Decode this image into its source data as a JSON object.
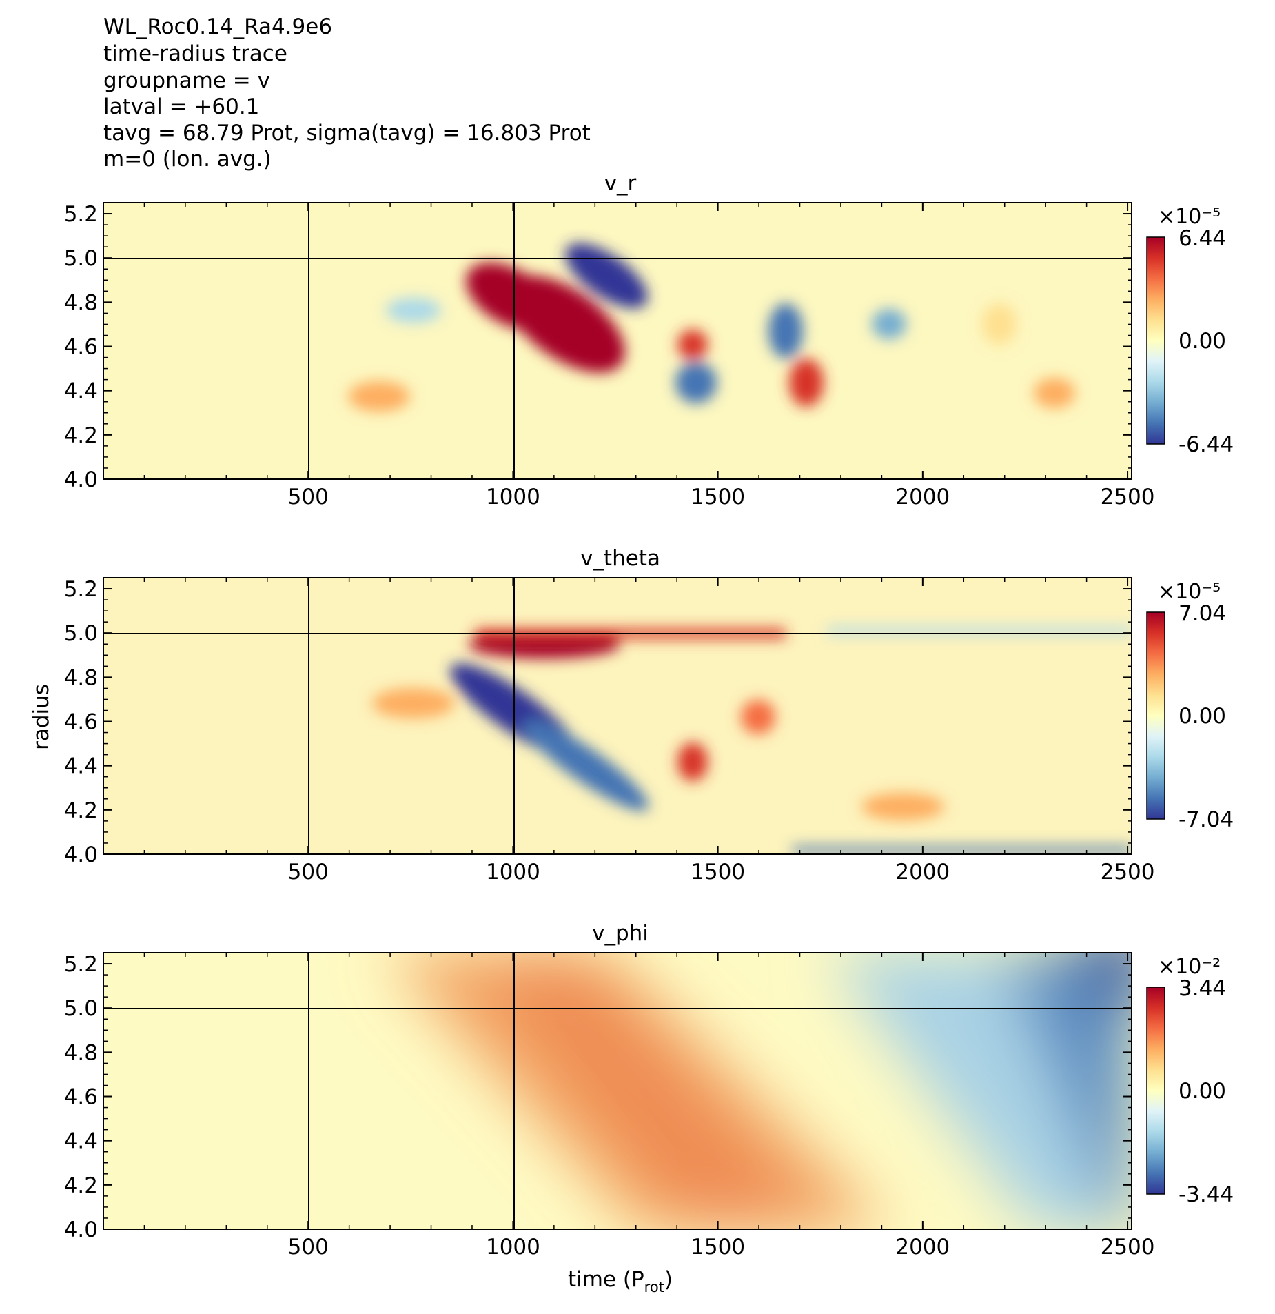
{
  "header": {
    "lines": [
      "WL_Roc0.14_Ra4.9e6",
      "time-radius trace",
      "groupname = v",
      "latval = +60.1",
      "tavg = 68.79 Prot, sigma(tavg) = 16.803 Prot",
      "m=0 (lon. avg.)"
    ]
  },
  "axes": {
    "ylabel": "radius",
    "xlabel_main": "time (P",
    "xlabel_sub": "rot",
    "xlabel_close": ")"
  },
  "chart_data": [
    {
      "type": "heatmap",
      "title": "v_r",
      "xlim": [
        0,
        2510
      ],
      "ylim": [
        4.0,
        5.25
      ],
      "xticks": [
        500,
        1000,
        1500,
        2000,
        2500
      ],
      "xtick_labels": [
        "500",
        "1000",
        "1500",
        "2000",
        "2500"
      ],
      "yticks": [
        4.0,
        4.2,
        4.4,
        4.6,
        4.8,
        5.0,
        5.2
      ],
      "ytick_labels": [
        "4.0",
        "4.2",
        "4.4",
        "4.6",
        "4.8",
        "5.0",
        "5.2"
      ],
      "reference_lines": {
        "x": [
          500,
          1000
        ],
        "y": [
          5.0
        ]
      },
      "colormap": "RdYlBu_r",
      "colorbar": {
        "exponent": "×10⁻⁵",
        "max_label": "6.44",
        "mid_label": "0.00",
        "min_label": "-6.44",
        "min": -6.44,
        "max": 6.44
      },
      "features": [
        {
          "x": 1000,
          "y": 4.72,
          "value": 6.44
        },
        {
          "x": 1120,
          "y": 4.55,
          "value": 6.0
        },
        {
          "x": 1150,
          "y": 4.82,
          "value": -5.5
        },
        {
          "x": 1430,
          "y": 4.4,
          "value": -5.0
        },
        {
          "x": 1430,
          "y": 4.6,
          "value": 5.0
        },
        {
          "x": 1620,
          "y": 4.65,
          "value": -4.5
        },
        {
          "x": 1640,
          "y": 4.45,
          "value": 4.5
        },
        {
          "x": 720,
          "y": 4.35,
          "value": 2.5
        },
        {
          "x": 2300,
          "y": 4.4,
          "value": 2.0
        }
      ]
    },
    {
      "type": "heatmap",
      "title": "v_theta",
      "xlim": [
        0,
        2510
      ],
      "ylim": [
        4.0,
        5.25
      ],
      "xticks": [
        500,
        1000,
        1500,
        2000,
        2500
      ],
      "xtick_labels": [
        "500",
        "1000",
        "1500",
        "2000",
        "2500"
      ],
      "yticks": [
        4.0,
        4.2,
        4.4,
        4.6,
        4.8,
        5.0,
        5.2
      ],
      "ytick_labels": [
        "4.0",
        "4.2",
        "4.4",
        "4.6",
        "4.8",
        "5.0",
        "5.2"
      ],
      "reference_lines": {
        "x": [
          500,
          1000
        ],
        "y": [
          5.0
        ]
      },
      "colormap": "RdYlBu_r",
      "colorbar": {
        "exponent": "×10⁻⁵",
        "max_label": "7.04",
        "mid_label": "0.00",
        "min_label": "-7.04",
        "min": -7.04,
        "max": 7.04
      },
      "features": [
        {
          "x": 1050,
          "y": 4.98,
          "value": 7.04
        },
        {
          "x": 1000,
          "y": 4.7,
          "value": -6.5
        },
        {
          "x": 1150,
          "y": 4.45,
          "value": -5.5
        },
        {
          "x": 1430,
          "y": 4.42,
          "value": 4.5
        },
        {
          "x": 1640,
          "y": 4.6,
          "value": 3.5
        },
        {
          "x": 2000,
          "y": 4.0,
          "value": -3.0
        }
      ]
    },
    {
      "type": "heatmap",
      "title": "v_phi",
      "xlim": [
        0,
        2510
      ],
      "ylim": [
        4.0,
        5.25
      ],
      "xticks": [
        500,
        1000,
        1500,
        2000,
        2500
      ],
      "xtick_labels": [
        "500",
        "1000",
        "1500",
        "2000",
        "2500"
      ],
      "yticks": [
        4.0,
        4.2,
        4.4,
        4.6,
        4.8,
        5.0,
        5.2
      ],
      "ytick_labels": [
        "4.0",
        "4.2",
        "4.4",
        "4.6",
        "4.8",
        "5.0",
        "5.2"
      ],
      "reference_lines": {
        "x": [
          500,
          1000
        ],
        "y": [
          5.0
        ]
      },
      "colormap": "RdYlBu_r",
      "colorbar": {
        "exponent": "×10⁻²",
        "max_label": "3.44",
        "mid_label": "0.00",
        "min_label": "-3.44",
        "min": -3.44,
        "max": 3.44
      },
      "features": [
        {
          "x": 1000,
          "y": 5.1,
          "value": 1.2
        },
        {
          "x": 1300,
          "y": 4.5,
          "value": 1.5
        },
        {
          "x": 1600,
          "y": 4.1,
          "value": 1.4
        },
        {
          "x": 2500,
          "y": 5.25,
          "value": -2.8
        },
        {
          "x": 2500,
          "y": 4.2,
          "value": -1.4
        }
      ]
    }
  ]
}
